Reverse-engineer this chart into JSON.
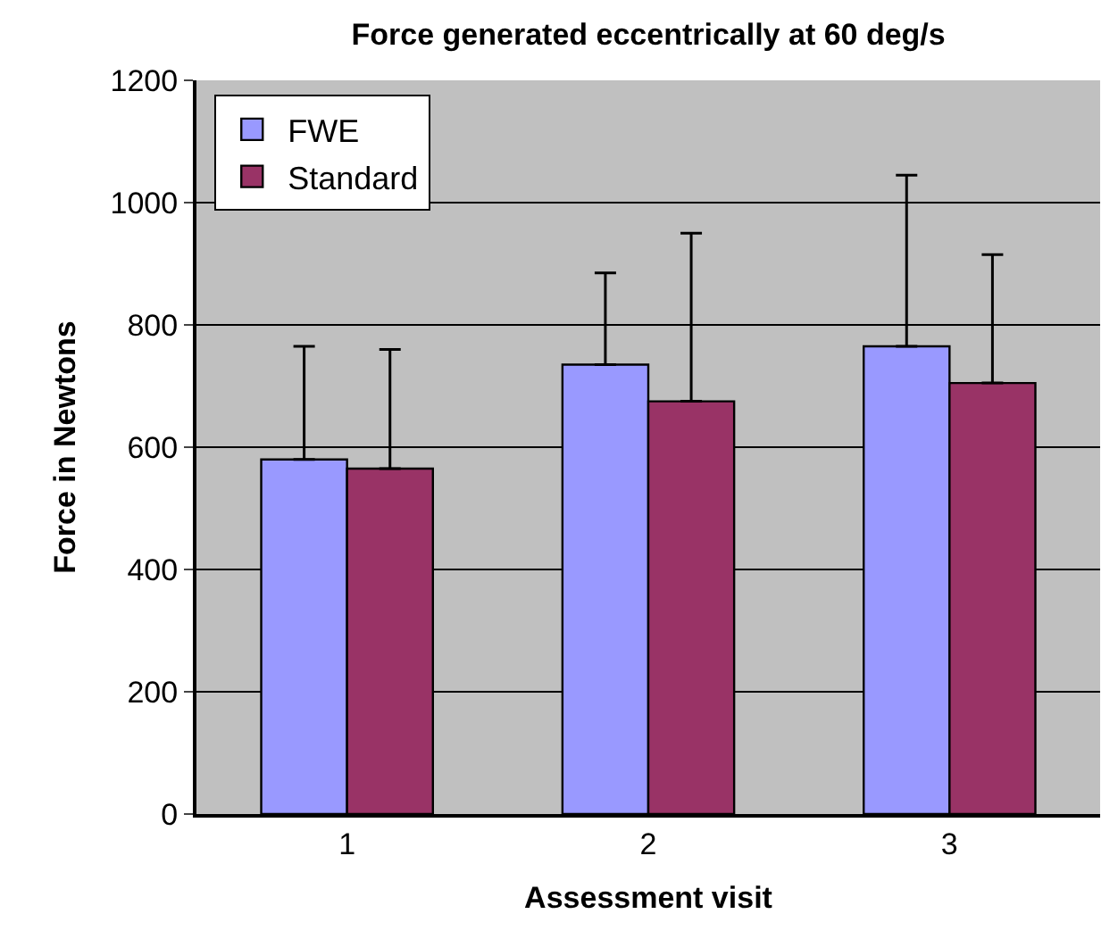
{
  "chart_data": {
    "type": "bar",
    "title": "Force generated eccentrically at 60 deg/s",
    "xlabel": "Assessment visit",
    "ylabel": "Force in Newtons",
    "categories": [
      "1",
      "2",
      "3"
    ],
    "series": [
      {
        "name": "FWE",
        "color": "#9999ff",
        "values": [
          580,
          735,
          765
        ],
        "errors": [
          [
            580,
            765
          ],
          [
            735,
            885
          ],
          [
            765,
            1045
          ]
        ]
      },
      {
        "name": "Standard",
        "color": "#993366",
        "values": [
          565,
          675,
          705
        ],
        "errors": [
          [
            565,
            760
          ],
          [
            675,
            950
          ],
          [
            705,
            915
          ]
        ]
      }
    ],
    "ylim": [
      0,
      1200
    ],
    "yticks": [
      0,
      200,
      400,
      600,
      800,
      1000,
      1200
    ],
    "grid": "y",
    "legend": "top left"
  }
}
